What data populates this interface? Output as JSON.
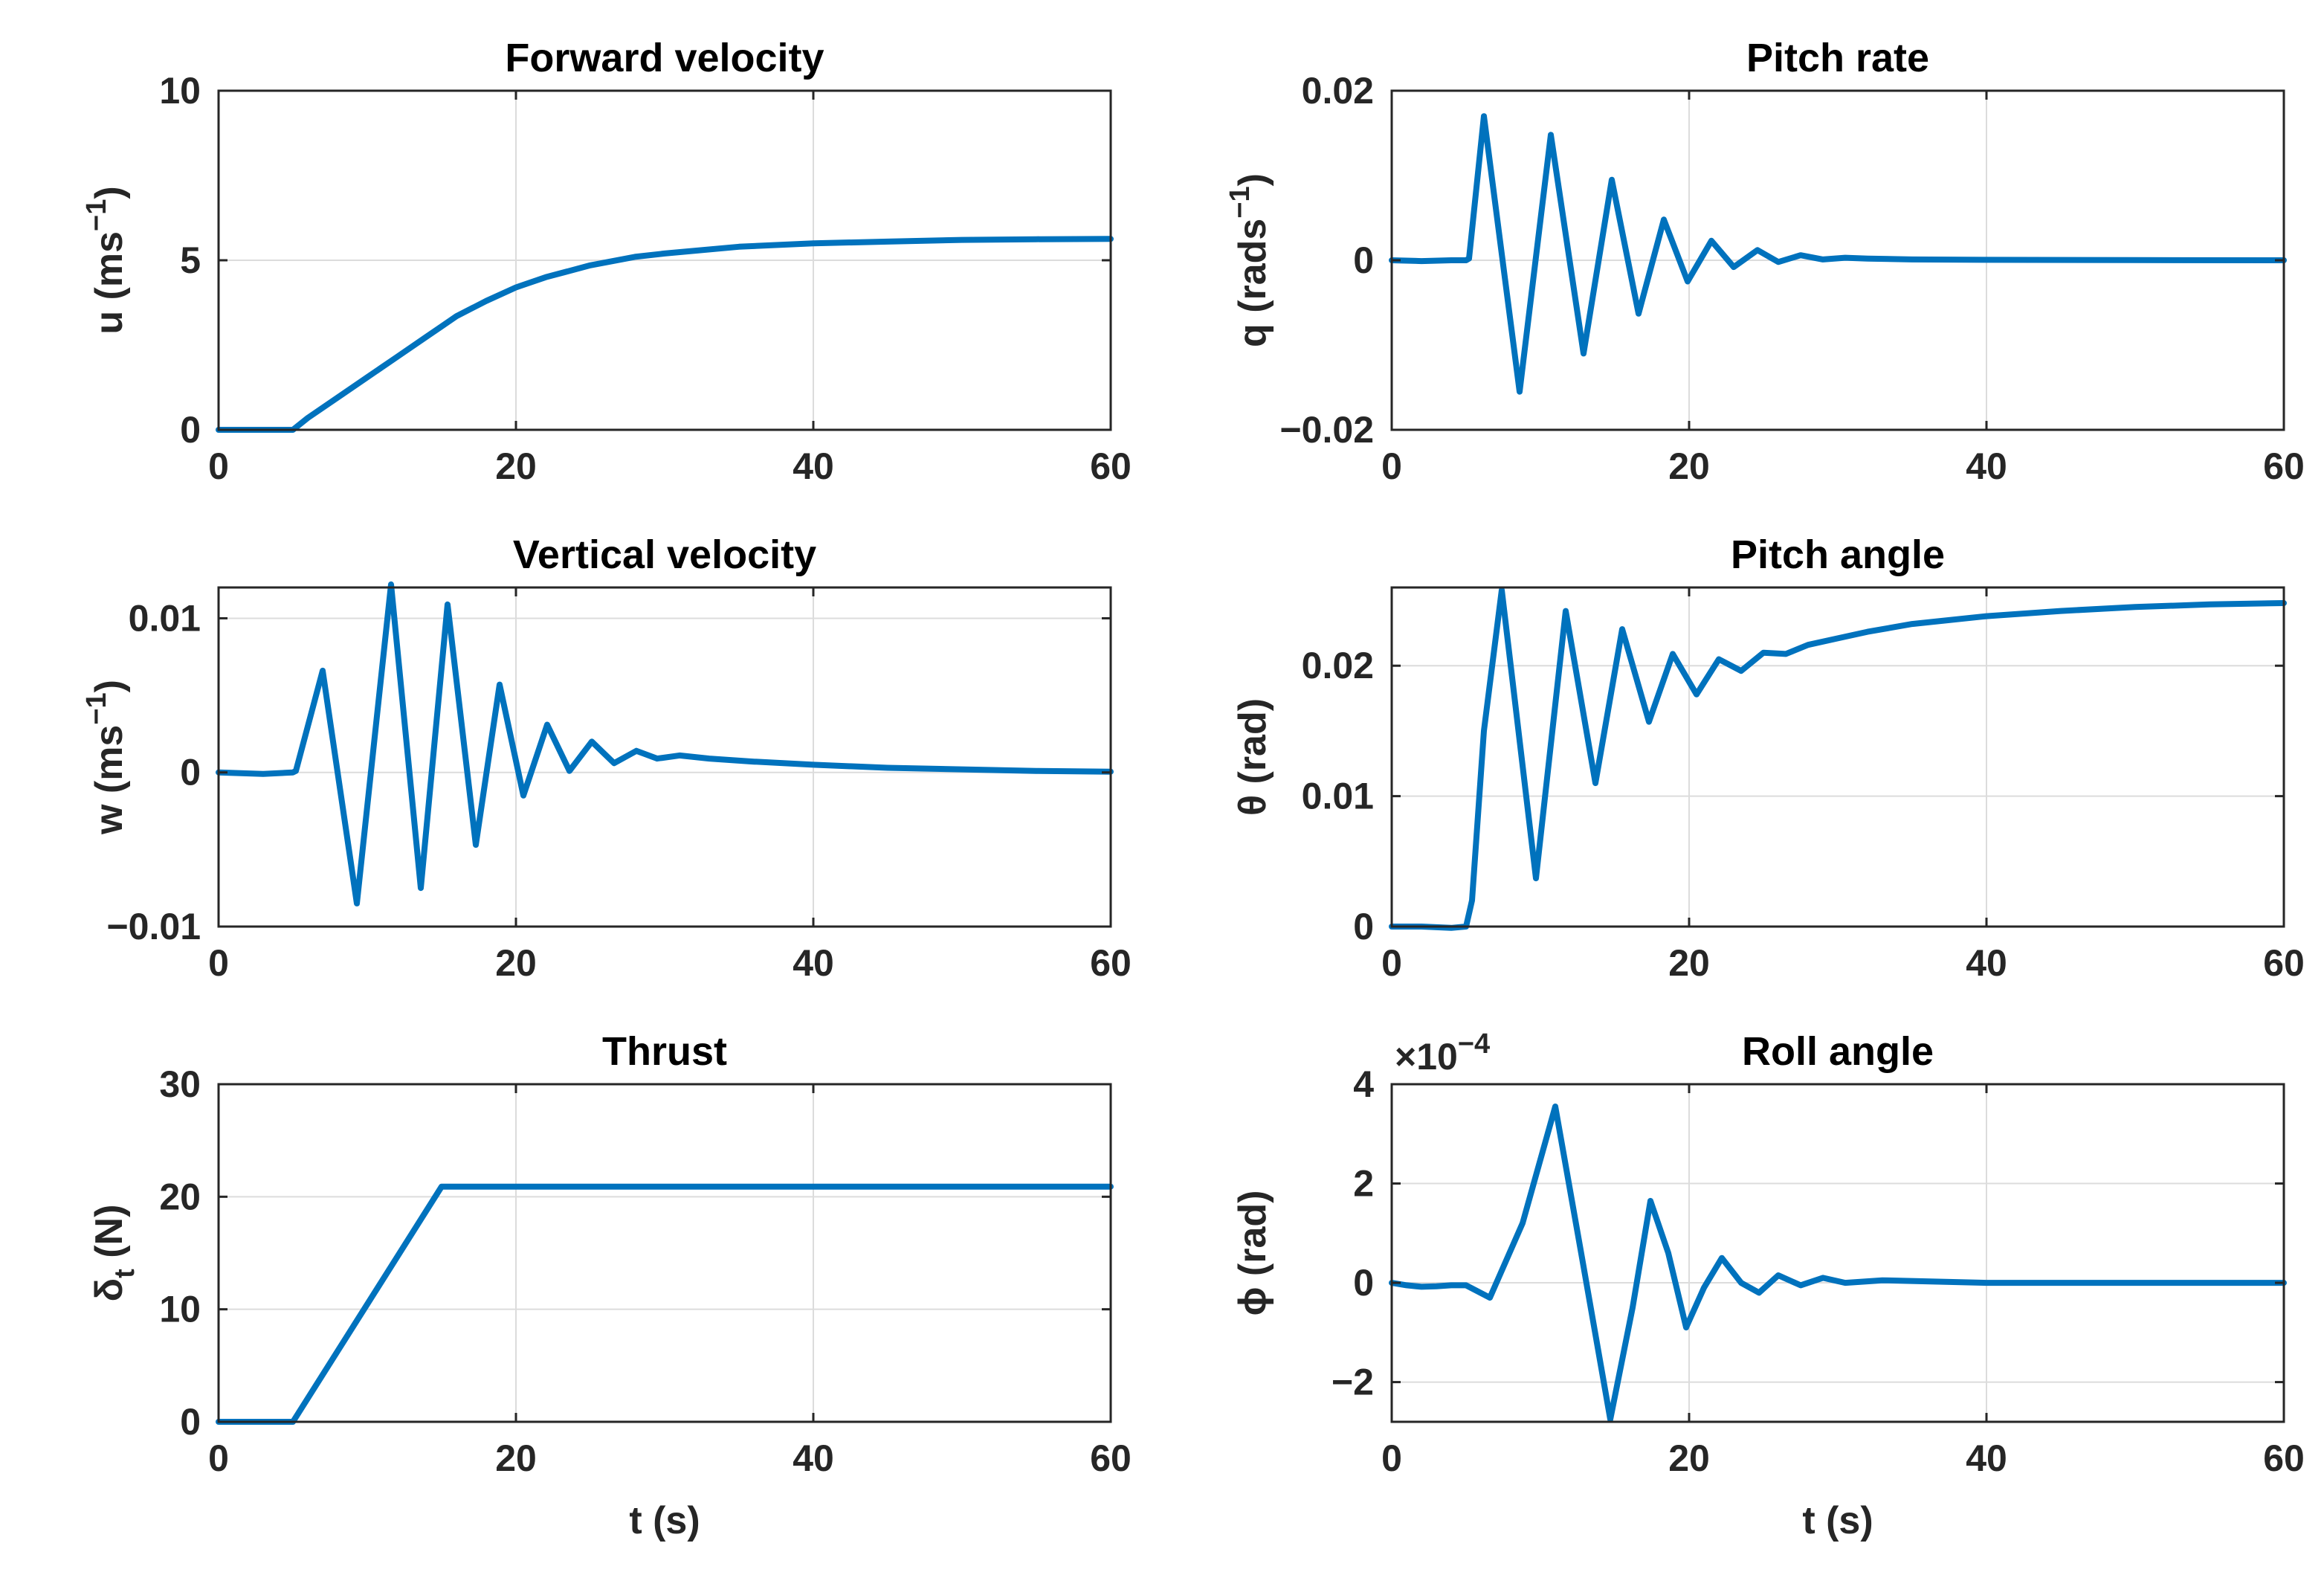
{
  "colors": {
    "line": "#0072BD",
    "axes": "#262626",
    "grid": "#dcdcdc"
  },
  "chart_data": [
    {
      "type": "line",
      "title": "Forward velocity",
      "xlabel": "",
      "ylabel": "u (ms",
      "ylabel_sup": "−1",
      "ylabel_tail": ")",
      "xlim": [
        0,
        60
      ],
      "ylim": [
        0,
        10
      ],
      "xticks": [
        "0",
        "20",
        "40",
        "60"
      ],
      "yticks": [
        "0",
        "5",
        "10"
      ],
      "grid": true,
      "series": [
        {
          "x": [
            0,
            5,
            6,
            8,
            10,
            12,
            14,
            15,
            16,
            18,
            20,
            22,
            25,
            28,
            30,
            35,
            40,
            45,
            50,
            55,
            60
          ],
          "y": [
            0,
            0,
            0.35,
            0.95,
            1.55,
            2.15,
            2.75,
            3.05,
            3.35,
            3.8,
            4.2,
            4.5,
            4.85,
            5.1,
            5.2,
            5.4,
            5.5,
            5.55,
            5.6,
            5.62,
            5.63
          ]
        }
      ]
    },
    {
      "type": "line",
      "title": "Pitch rate",
      "xlabel": "",
      "ylabel": "q (rads",
      "ylabel_sup": "−1",
      "ylabel_tail": ")",
      "xlim": [
        0,
        60
      ],
      "ylim": [
        -0.02,
        0.02
      ],
      "xticks": [
        "0",
        "20",
        "40",
        "60"
      ],
      "yticks": [
        "−0.02",
        "0",
        "0.02"
      ],
      "grid": true,
      "series": [
        {
          "x": [
            0,
            2,
            4,
            5,
            5.2,
            6.2,
            8.6,
            10.7,
            12.9,
            14.8,
            16.6,
            18.3,
            19.9,
            21.5,
            23.0,
            24.6,
            26.0,
            27.5,
            29.0,
            30.5,
            32,
            35,
            40,
            50,
            60
          ],
          "y": [
            0,
            -0.0001,
            0,
            0,
            0.0002,
            0.017,
            -0.0155,
            0.0148,
            -0.011,
            0.0095,
            -0.0063,
            0.0048,
            -0.0025,
            0.0023,
            -0.0008,
            0.0012,
            -0.0002,
            0.0006,
            0.0001,
            0.0003,
            0.0002,
            0.0001,
            5e-05,
            2e-05,
            0
          ]
        }
      ]
    },
    {
      "type": "line",
      "title": "Vertical velocity",
      "xlabel": "",
      "ylabel": "w (ms",
      "ylabel_sup": "−1",
      "ylabel_tail": ")",
      "xlim": [
        0,
        60
      ],
      "ylim": [
        -0.01,
        0.012
      ],
      "xticks": [
        "0",
        "20",
        "40",
        "60"
      ],
      "yticks": [
        "−0.01",
        "0",
        "0.01"
      ],
      "grid": true,
      "series": [
        {
          "x": [
            0,
            3,
            5,
            5.2,
            7,
            9.3,
            11.6,
            13.6,
            15.4,
            17.3,
            18.9,
            20.5,
            22.1,
            23.6,
            25.1,
            26.6,
            28.1,
            29.5,
            31,
            33,
            36,
            40,
            45,
            50,
            55,
            60
          ],
          "y": [
            0,
            -0.0001,
            0,
            0.0001,
            0.0066,
            -0.0085,
            0.0122,
            -0.0075,
            0.0109,
            -0.0047,
            0.0057,
            -0.0015,
            0.0031,
            0.0001,
            0.002,
            0.0006,
            0.0014,
            0.0009,
            0.0011,
            0.0009,
            0.0007,
            0.0005,
            0.0003,
            0.0002,
            0.0001,
            5e-05
          ]
        }
      ]
    },
    {
      "type": "line",
      "title": "Pitch angle",
      "xlabel": "",
      "ylabel": "θ (rad)",
      "xlim": [
        0,
        60
      ],
      "ylim": [
        0,
        0.026
      ],
      "xticks": [
        "0",
        "20",
        "40",
        "60"
      ],
      "yticks": [
        "0",
        "0.01",
        "0.02"
      ],
      "grid": true,
      "series": [
        {
          "x": [
            0,
            2,
            4,
            5,
            5.4,
            6.2,
            7.4,
            9.7,
            11.7,
            13.7,
            15.5,
            17.3,
            18.9,
            20.5,
            22.0,
            23.5,
            25.0,
            26.5,
            28,
            30,
            32,
            35,
            40,
            45,
            50,
            55,
            60
          ],
          "y": [
            0,
            0,
            -0.0001,
            0,
            0.002,
            0.015,
            0.0258,
            0.0037,
            0.0242,
            0.011,
            0.0228,
            0.0157,
            0.0209,
            0.0178,
            0.0205,
            0.0196,
            0.021,
            0.0209,
            0.0216,
            0.0221,
            0.0226,
            0.0232,
            0.0238,
            0.0242,
            0.0245,
            0.0247,
            0.0248
          ]
        }
      ]
    },
    {
      "type": "line",
      "title": "Thrust",
      "xlabel": "t (s)",
      "ylabel": "δ",
      "ylabel_sub": "t",
      "ylabel_tail": " (N)",
      "xlim": [
        0,
        60
      ],
      "ylim": [
        0,
        30
      ],
      "xticks": [
        "0",
        "20",
        "40",
        "60"
      ],
      "yticks": [
        "0",
        "10",
        "20",
        "30"
      ],
      "grid": true,
      "series": [
        {
          "x": [
            0,
            5,
            15,
            60
          ],
          "y": [
            0,
            0,
            20.9,
            20.9
          ]
        }
      ]
    },
    {
      "type": "line",
      "title": "Roll angle",
      "xlabel": "t (s)",
      "ylabel": "ϕ (rad)",
      "exponent_base": "×10",
      "exponent_power": "−4",
      "xlim": [
        0,
        60
      ],
      "ylim": [
        -2.8,
        4
      ],
      "xticks": [
        "0",
        "20",
        "40",
        "60"
      ],
      "yticks": [
        "−2",
        "0",
        "2",
        "4"
      ],
      "grid": true,
      "series": [
        {
          "x": [
            0,
            1,
            2,
            3,
            4,
            5,
            6.6,
            8.8,
            11.0,
            12.8,
            14.7,
            16.2,
            17.4,
            18.6,
            19.8,
            21.0,
            22.2,
            23.5,
            24.7,
            26.0,
            27.5,
            29.0,
            30.5,
            33,
            40,
            50,
            60
          ],
          "y": [
            0,
            -0.05,
            -0.08,
            -0.07,
            -0.05,
            -0.05,
            -0.3,
            1.2,
            3.55,
            0.5,
            -2.75,
            -0.5,
            1.65,
            0.6,
            -0.9,
            -0.1,
            0.5,
            0.0,
            -0.2,
            0.15,
            -0.05,
            0.1,
            0.0,
            0.05,
            0.0,
            0.0,
            0.0
          ]
        }
      ]
    }
  ]
}
